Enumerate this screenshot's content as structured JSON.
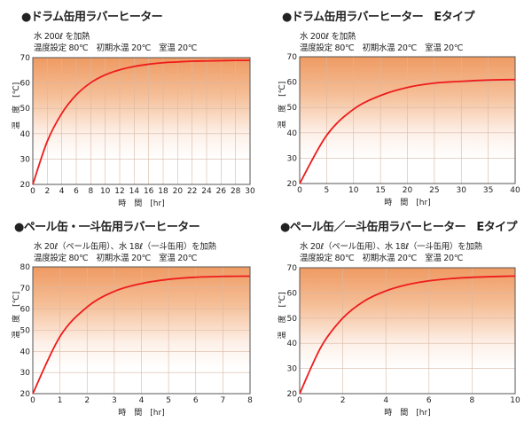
{
  "chart_data": [
    {
      "type": "line",
      "title": "●ドラム缶用ラバーヒーター",
      "subtitle": [
        "水 200ℓ を加熱",
        "温度設定 80℃　初期水温 20℃　室温 20℃"
      ],
      "xlabel": "時　間　[hr]",
      "ylabel": "温　度　[℃]",
      "xlim": [
        0,
        30
      ],
      "ylim": [
        20,
        70
      ],
      "xticks": [
        0,
        2,
        4,
        6,
        8,
        10,
        12,
        14,
        16,
        18,
        20,
        22,
        24,
        26,
        28,
        30
      ],
      "yticks": [
        20,
        30,
        40,
        50,
        60,
        70
      ],
      "grid": true,
      "series": [
        {
          "name": "water temperature",
          "color": "#ee1c1c",
          "x": [
            0,
            2,
            4,
            6,
            8,
            10,
            12,
            14,
            16,
            18,
            20,
            22,
            24,
            26,
            28,
            30
          ],
          "y": [
            20,
            37.0,
            48.0,
            55.3,
            60.1,
            63.2,
            65.2,
            66.5,
            67.4,
            68.0,
            68.3,
            68.6,
            68.7,
            68.8,
            68.9,
            68.9
          ]
        }
      ]
    },
    {
      "type": "line",
      "title": "●ドラム缶用ラバーヒーター　Eタイプ",
      "subtitle": [
        "水 200ℓ を加熱",
        "温度設定 80℃　初期水温 20℃　室温 20℃"
      ],
      "xlabel": "時　間　[hr]",
      "ylabel": "温　度　[℃]",
      "xlim": [
        0,
        40
      ],
      "ylim": [
        20,
        70
      ],
      "xticks": [
        0,
        5,
        10,
        15,
        20,
        25,
        30,
        35,
        40
      ],
      "yticks": [
        20,
        30,
        40,
        50,
        60,
        70
      ],
      "grid": true,
      "series": [
        {
          "name": "water temperature",
          "color": "#ee1c1c",
          "x": [
            0,
            5,
            10,
            15,
            20,
            25,
            30,
            35,
            40
          ],
          "y": [
            20,
            39.0,
            49.3,
            54.7,
            57.9,
            59.6,
            60.3,
            60.8,
            61.0
          ]
        }
      ]
    },
    {
      "type": "line",
      "title": "●ペール缶・一斗缶用ラバーヒーター",
      "subtitle": [
        "水 20ℓ（ペール缶用）、水 18ℓ（一斗缶用）を加熱",
        "温度設定 80℃　初期水温 20℃　室温 20℃"
      ],
      "xlabel": "時　間　[hr]",
      "ylabel": "温　度　[℃]",
      "xlim": [
        0,
        8
      ],
      "ylim": [
        20,
        80
      ],
      "xticks": [
        0,
        1,
        2,
        3,
        4,
        5,
        6,
        7,
        8
      ],
      "yticks": [
        20,
        30,
        40,
        50,
        60,
        70,
        80
      ],
      "grid": true,
      "series": [
        {
          "name": "water temperature",
          "color": "#ee1c1c",
          "x": [
            0,
            1,
            2,
            3,
            4,
            5,
            6,
            7,
            8
          ],
          "y": [
            20,
            47.0,
            61.0,
            68.4,
            72.1,
            74.1,
            75.1,
            75.5,
            75.6
          ]
        }
      ]
    },
    {
      "type": "line",
      "title": "●ペール缶／一斗缶用ラバーヒーター　Eタイプ",
      "subtitle": [
        "水 20ℓ（ペール缶用）、水 18ℓ（一斗缶用）を加熱",
        "温度設定 80℃　初期水温 20℃　室温 20℃"
      ],
      "xlabel": "時　間　[hr]",
      "ylabel": "温　度　[℃]",
      "xlim": [
        0,
        10
      ],
      "ylim": [
        20,
        70
      ],
      "xticks": [
        0,
        2,
        4,
        6,
        8,
        10
      ],
      "yticks": [
        20,
        30,
        40,
        50,
        60,
        70
      ],
      "grid": true,
      "series": [
        {
          "name": "water temperature",
          "color": "#ee1c1c",
          "x": [
            0,
            1,
            2,
            3,
            4,
            5,
            6,
            7,
            8,
            9,
            10
          ],
          "y": [
            20,
            38.7,
            50.0,
            56.8,
            60.8,
            63.3,
            64.8,
            65.7,
            66.2,
            66.5,
            66.7
          ]
        }
      ]
    }
  ]
}
